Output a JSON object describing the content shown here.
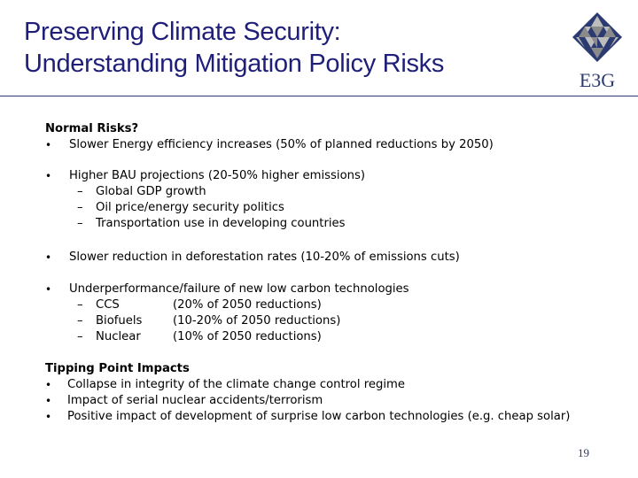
{
  "header": {
    "title_line1": "Preserving Climate Security:",
    "title_line2": "Understanding Mitigation Policy Risks",
    "logo_text": "E3G",
    "logo_colors": [
      "#2b3a70",
      "#8a8a8a",
      "#bdbdbd"
    ]
  },
  "normal_risks": {
    "heading": "Normal Risks?",
    "bullet1": "Slower Energy efficiency increases (50% of planned reductions by 2050)",
    "bullet2": "Higher BAU projections (20-50% higher emissions)",
    "bullet2_subs": [
      "Global GDP growth",
      "Oil price/energy security politics",
      "Transportation use in developing countries"
    ],
    "bullet3": "Slower reduction in deforestation rates  (10-20% of emissions cuts)",
    "bullet4": "Underperformance/failure of new low carbon technologies",
    "bullet4_subs": [
      {
        "name": "CCS",
        "detail": "(20% of 2050 reductions)"
      },
      {
        "name": "Biofuels",
        "detail": "(10-20% of 2050 reductions)"
      },
      {
        "name": "Nuclear",
        "detail": "(10% of 2050 reductions)"
      }
    ]
  },
  "tipping": {
    "heading": "Tipping Point Impacts",
    "items": [
      "Collapse in integrity of the climate change control regime",
      "Impact of serial nuclear accidents/terrorism",
      "Positive impact of development of surprise low carbon technologies (e.g. cheap solar)"
    ]
  },
  "bullet_char": "•",
  "dash_char": "–",
  "page_number": "19"
}
